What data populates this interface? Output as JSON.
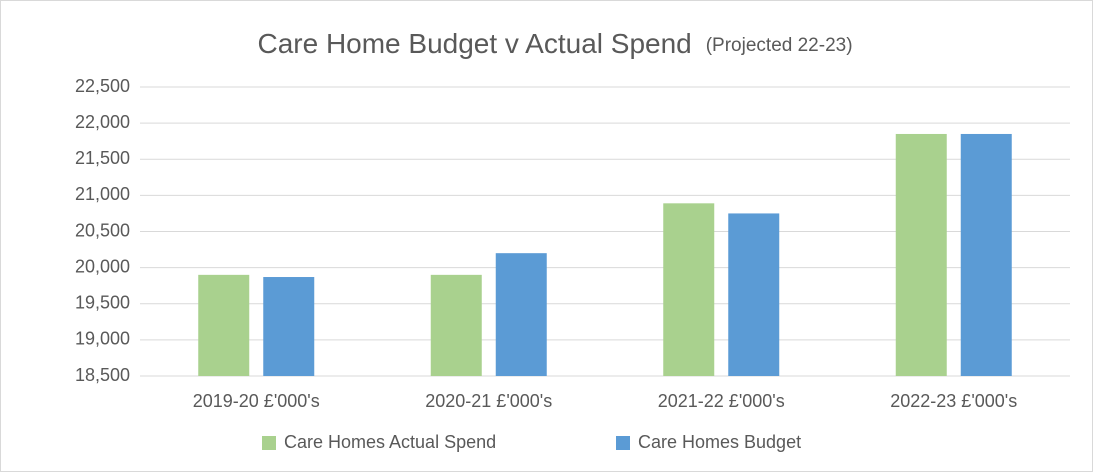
{
  "chart_data": {
    "type": "bar",
    "title": "Care Home Budget v Actual Spend",
    "subtitle": "(Projected 22-23)",
    "categories": [
      "2019-20 £'000's",
      "2020-21 £'000's",
      "2021-22 £'000's",
      "2022-23 £'000's"
    ],
    "series": [
      {
        "name": "Care Homes Actual Spend",
        "color": "#a9d18e",
        "values": [
          19900,
          19900,
          20890,
          21850
        ]
      },
      {
        "name": "Care Homes Budget",
        "color": "#5b9bd5",
        "values": [
          19870,
          20200,
          20750,
          21850
        ]
      }
    ],
    "ylim": [
      18500,
      22500
    ],
    "yticks": [
      {
        "value": 18500,
        "label": "18,500"
      },
      {
        "value": 19000,
        "label": "19,000"
      },
      {
        "value": 19500,
        "label": "19,500"
      },
      {
        "value": 20000,
        "label": "20,000"
      },
      {
        "value": 20500,
        "label": "20,500"
      },
      {
        "value": 21000,
        "label": "21,000"
      },
      {
        "value": 21500,
        "label": "21,500"
      },
      {
        "value": 22000,
        "label": "22,000"
      },
      {
        "value": 22500,
        "label": "22,500"
      }
    ],
    "grid": true,
    "legend": "bottom"
  }
}
